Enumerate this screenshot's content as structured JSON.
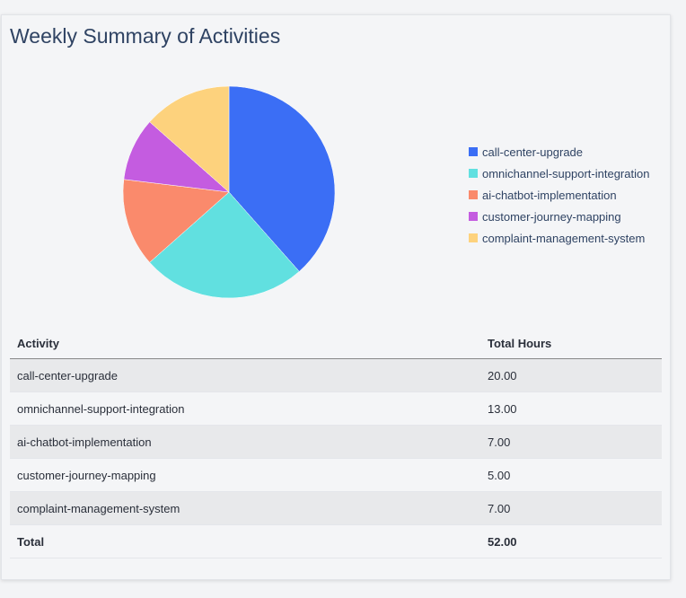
{
  "title": "Weekly Summary of Activities",
  "chart_data": {
    "type": "pie",
    "categories": [
      "call-center-upgrade",
      "omnichannel-support-integration",
      "ai-chatbot-implementation",
      "customer-journey-mapping",
      "complaint-management-system"
    ],
    "values": [
      20,
      13,
      7,
      5,
      7
    ],
    "colors": [
      "#3b6ef5",
      "#61e0e0",
      "#fa8a6c",
      "#c45ce0",
      "#fdd27d"
    ],
    "legend": "right"
  },
  "table": {
    "headers": [
      "Activity",
      "Total Hours"
    ],
    "rows": [
      [
        "call-center-upgrade",
        "20.00"
      ],
      [
        "omnichannel-support-integration",
        "13.00"
      ],
      [
        "ai-chatbot-implementation",
        "7.00"
      ],
      [
        "customer-journey-mapping",
        "5.00"
      ],
      [
        "complaint-management-system",
        "7.00"
      ]
    ],
    "total": [
      "Total",
      "52.00"
    ]
  }
}
